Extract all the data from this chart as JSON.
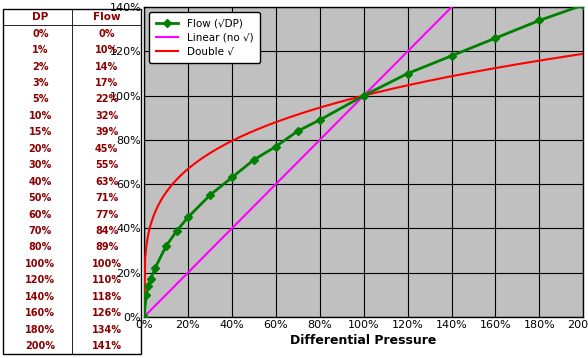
{
  "dp_flow_points": [
    [
      0,
      0
    ],
    [
      1,
      10
    ],
    [
      2,
      14
    ],
    [
      3,
      17
    ],
    [
      5,
      22
    ],
    [
      10,
      32
    ],
    [
      15,
      39
    ],
    [
      20,
      45
    ],
    [
      30,
      55
    ],
    [
      40,
      63
    ],
    [
      50,
      71
    ],
    [
      60,
      77
    ],
    [
      70,
      84
    ],
    [
      80,
      89
    ],
    [
      100,
      100
    ],
    [
      120,
      110
    ],
    [
      140,
      118
    ],
    [
      160,
      126
    ],
    [
      180,
      134
    ],
    [
      200,
      141
    ]
  ],
  "table_dp": [
    0,
    1,
    2,
    3,
    5,
    10,
    15,
    20,
    30,
    40,
    50,
    60,
    70,
    80,
    100,
    120,
    140,
    160,
    180,
    200
  ],
  "table_flow": [
    0,
    10,
    14,
    17,
    22,
    32,
    39,
    45,
    55,
    63,
    71,
    77,
    84,
    89,
    100,
    110,
    118,
    126,
    134,
    141
  ],
  "flow_color": "#008000",
  "linear_color": "#FF00FF",
  "double_sqrt_color": "#FF0000",
  "bg_color": "#C0C0C0",
  "grid_color": "#000000",
  "xlabel": "Differential Pressure",
  "legend_flow": "Flow (√DP)",
  "legend_linear": "Linear (no √)",
  "legend_double": "Double √",
  "xlim": [
    0,
    200
  ],
  "ylim": [
    0,
    140
  ],
  "table_text_color": "#8B0000",
  "table_header_dp": "DP",
  "table_header_flow": "Flow"
}
